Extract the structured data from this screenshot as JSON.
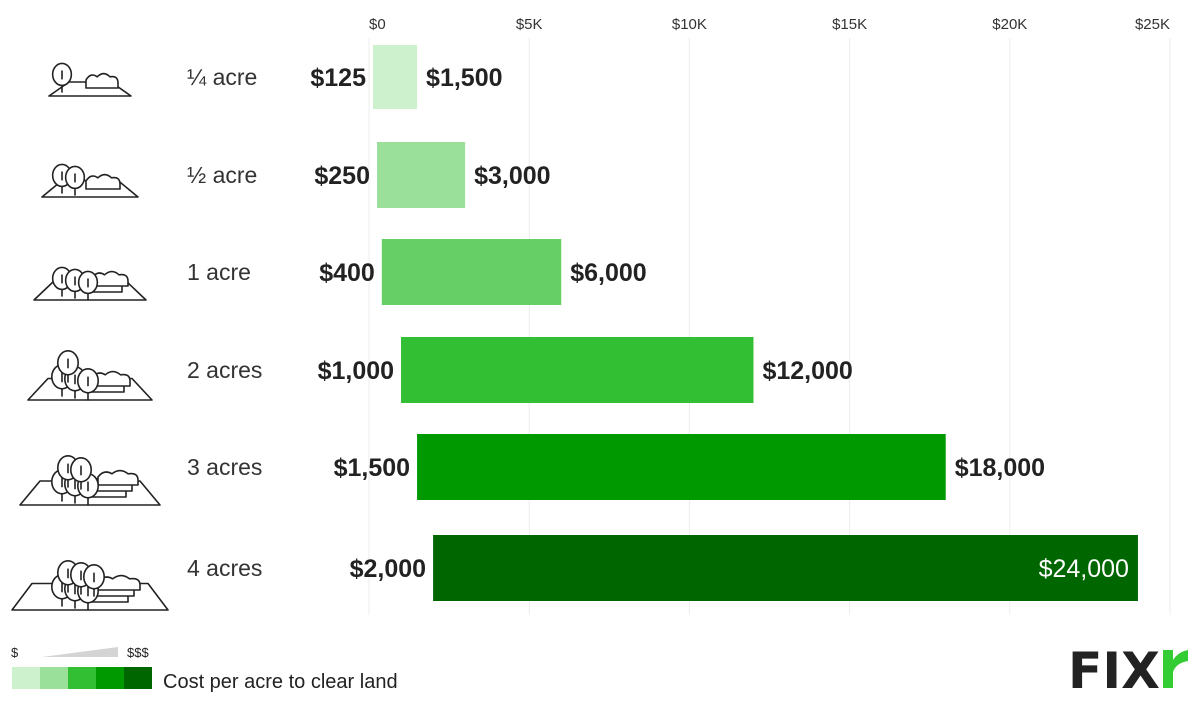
{
  "chart_data": {
    "type": "bar",
    "orientation": "horizontal-range",
    "categories": [
      "¼ acre",
      "½ acre",
      "1 acre",
      "2 acres",
      "3 acres",
      "4 acres"
    ],
    "series": [
      {
        "low": [
          125,
          250,
          400,
          1000,
          1500,
          2000
        ]
      },
      {
        "high": [
          1500,
          3000,
          6000,
          12000,
          18000,
          24000
        ]
      }
    ],
    "low_labels": [
      "$125",
      "$250",
      "$400",
      "$1,000",
      "$1,500",
      "$2,000"
    ],
    "high_labels": [
      "$1,500",
      "$3,000",
      "$6,000",
      "$12,000",
      "$18,000",
      "$24,000"
    ],
    "xlim": [
      0,
      25000
    ],
    "xticks": [
      0,
      5000,
      10000,
      15000,
      20000,
      25000
    ],
    "xtick_labels": [
      "$0",
      "$5K",
      "$10K",
      "$15K",
      "$20K",
      "$25K"
    ],
    "grid": true,
    "bar_colors": [
      "#cdf0cd",
      "#9adf9a",
      "#66cf66",
      "#33bf33",
      "#009900",
      "#006600"
    ],
    "icons": [
      "land-trees-icon",
      "land-trees-icon",
      "land-trees-icon",
      "land-trees-icon",
      "land-trees-icon",
      "land-trees-icon"
    ]
  },
  "legend": {
    "low_symbol": "$",
    "high_symbol": "$$$",
    "label": "Cost per acre to clear land",
    "swatches": [
      "#cdf0cd",
      "#9adf9a",
      "#33bf33",
      "#009900",
      "#006600"
    ],
    "placement": "bottom-left"
  },
  "brand": {
    "logo_text": "FIXR",
    "accent_color": "#33cc33"
  }
}
